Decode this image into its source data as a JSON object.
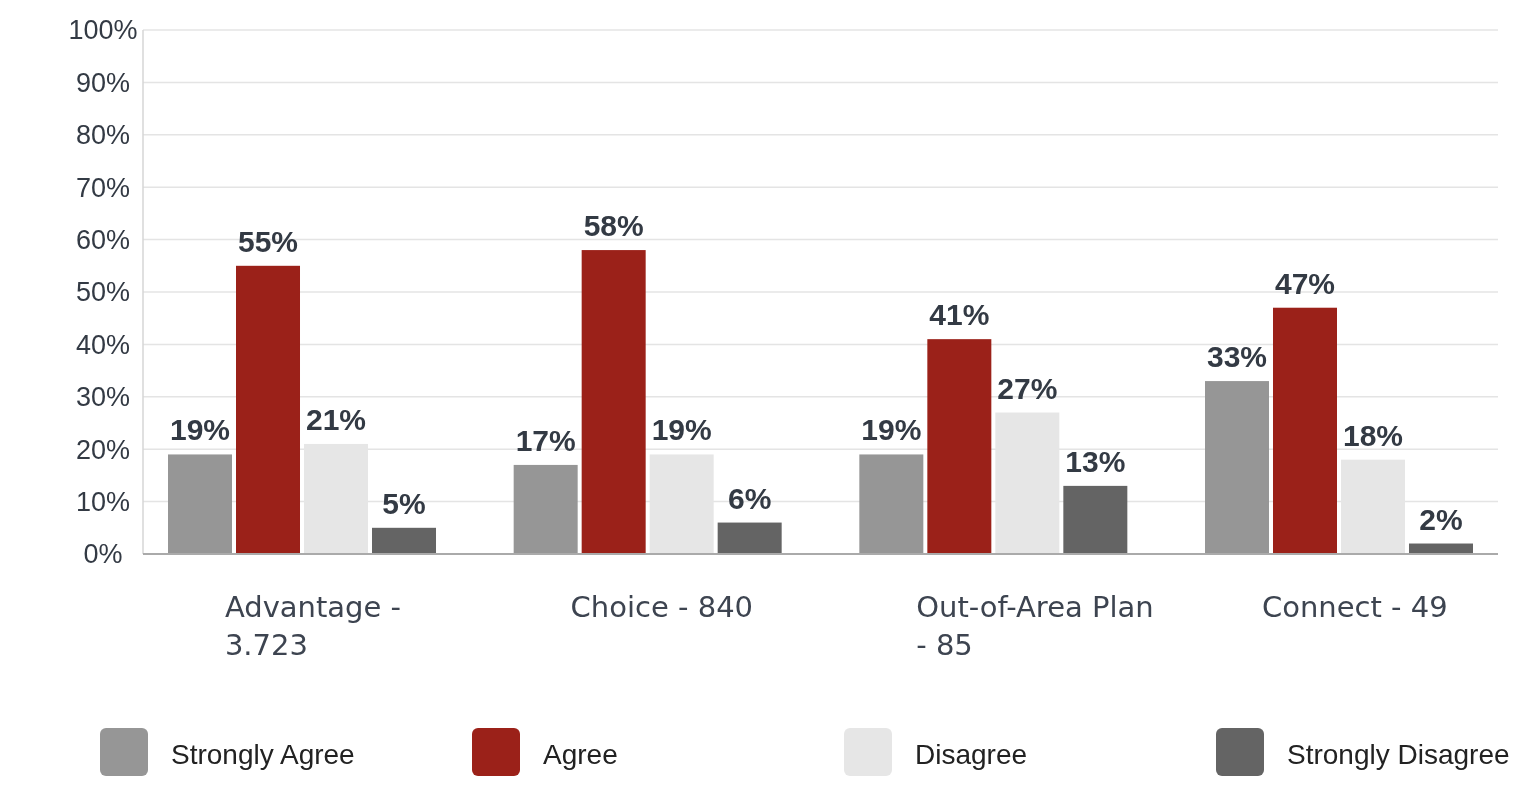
{
  "chart_data": {
    "type": "bar",
    "categories": [
      "Advantage - 3.723",
      "Choice - 840",
      "Out-of-Area Plan - 85",
      "Connect - 49"
    ],
    "series": [
      {
        "name": "Strongly Agree",
        "color": "#969696",
        "values": [
          19,
          17,
          19,
          33
        ],
        "value_labels": [
          "19%",
          "17%",
          "19%",
          "33%"
        ]
      },
      {
        "name": "Agree",
        "color": "#9b2119",
        "values": [
          55,
          58,
          41,
          47
        ],
        "value_labels": [
          "55%",
          "58%",
          "41%",
          "47%"
        ]
      },
      {
        "name": "Disagree",
        "color": "#e6e6e6",
        "values": [
          21,
          19,
          27,
          18
        ],
        "value_labels": [
          "21%",
          "19%",
          "27%",
          "18%"
        ]
      },
      {
        "name": "Strongly Disagree",
        "color": "#646464",
        "values": [
          5,
          6,
          13,
          2
        ],
        "value_labels": [
          "5%",
          "6%",
          "13%",
          "2%"
        ]
      }
    ],
    "ylim": [
      0,
      100
    ],
    "yticks": [
      {
        "value": 0,
        "label": "0%"
      },
      {
        "value": 10,
        "label": "10%"
      },
      {
        "value": 20,
        "label": "20%"
      },
      {
        "value": 30,
        "label": "30%"
      },
      {
        "value": 40,
        "label": "40%"
      },
      {
        "value": 50,
        "label": "50%"
      },
      {
        "value": 60,
        "label": "60%"
      },
      {
        "value": 70,
        "label": "70%"
      },
      {
        "value": 80,
        "label": "80%"
      },
      {
        "value": 90,
        "label": "90%"
      },
      {
        "value": 100,
        "label": "100%"
      }
    ],
    "grid": "y",
    "legend": "bottom"
  }
}
